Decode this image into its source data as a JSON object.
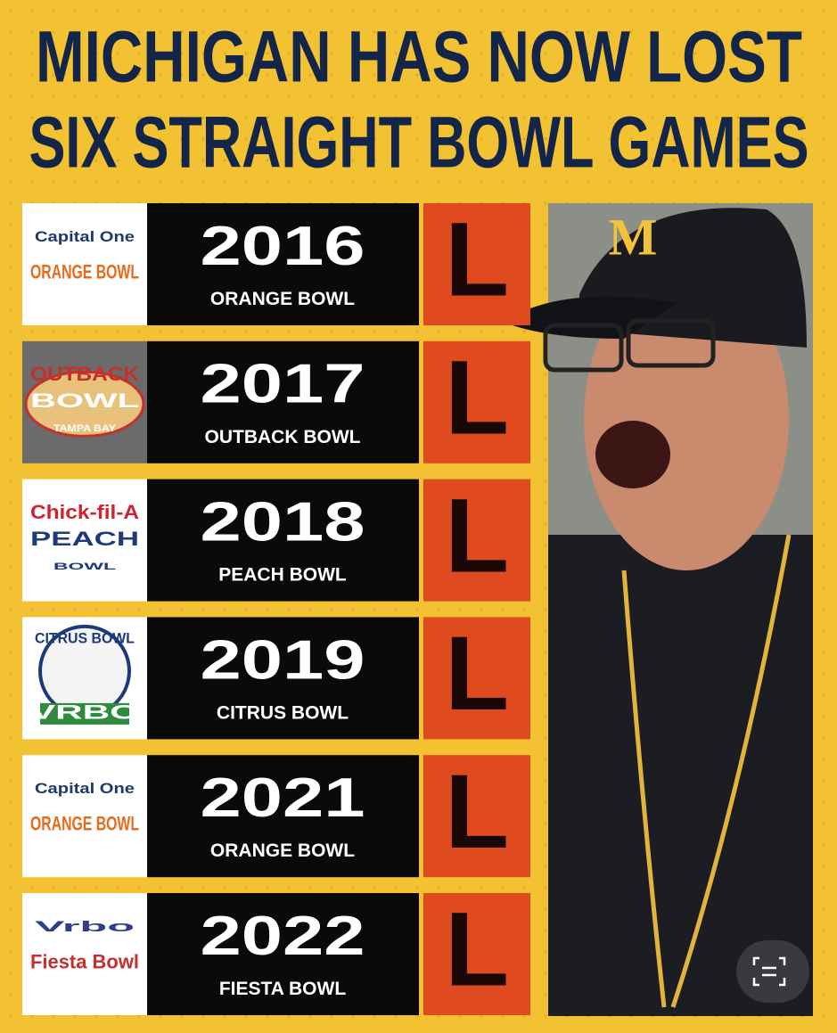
{
  "title": {
    "line1": "MICHIGAN HAS NOW LOST",
    "line2": "SIX STRAIGHT BOWL GAMES"
  },
  "rows": [
    {
      "logo": [
        "Capital One",
        "ORANGE BOWL"
      ],
      "year": "2016",
      "bowl": "ORANGE BOWL",
      "result": "L"
    },
    {
      "logo": [
        "OUTBACK",
        "BOWL",
        "TAMPA BAY"
      ],
      "year": "2017",
      "bowl": "OUTBACK BOWL",
      "result": "L"
    },
    {
      "logo": [
        "Chick-fil-A",
        "PEACH",
        "BOWL"
      ],
      "year": "2018",
      "bowl": "PEACH BOWL",
      "result": "L"
    },
    {
      "logo": [
        "CITRUS BOWL",
        "VRBO"
      ],
      "year": "2019",
      "bowl": "CITRUS BOWL",
      "result": "L"
    },
    {
      "logo": [
        "Capital One",
        "ORANGE BOWL"
      ],
      "year": "2021",
      "bowl": "ORANGE BOWL",
      "result": "L"
    },
    {
      "logo": [
        "Vrbo",
        "Fiesta Bowl"
      ],
      "year": "2022",
      "bowl": "FIESTA BOWL",
      "result": "L"
    }
  ],
  "photo": {
    "cap_logo": "M"
  }
}
